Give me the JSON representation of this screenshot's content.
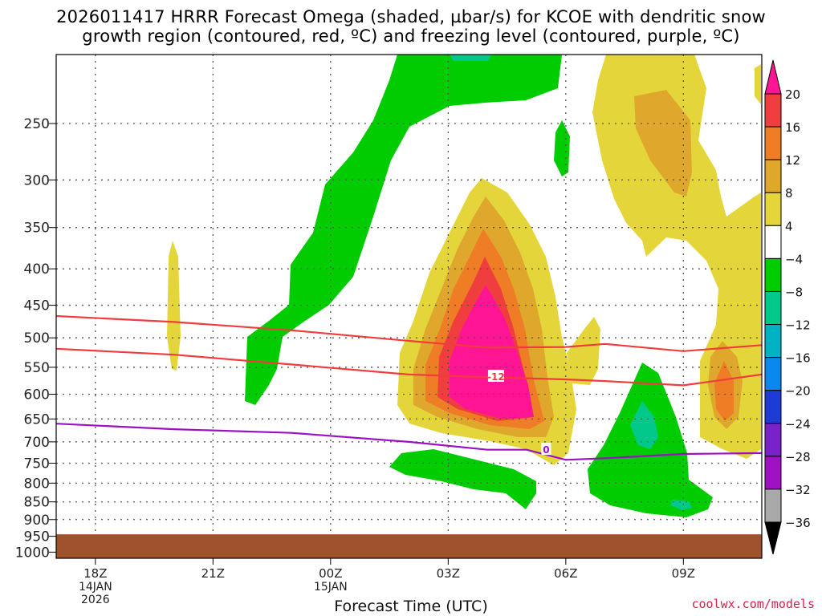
{
  "title_line1": "2026011417 HRRR Forecast Omega (shaded, µbar/s) for KCOE with dendritic snow",
  "title_line2": "growth region (contoured, red, ºC) and freezing level (contoured, purple, ºC)",
  "credit": "coolwx.com/models",
  "chart_data": {
    "type": "time-height cross section",
    "x_label": "Forecast Time (UTC)",
    "y_label": "",
    "x_ticks": [
      {
        "label": "18Z",
        "sub": [
          "14JAN",
          "2026"
        ]
      },
      {
        "label": "21Z",
        "sub": []
      },
      {
        "label": "00Z",
        "sub": [
          "15JAN"
        ]
      },
      {
        "label": "03Z",
        "sub": []
      },
      {
        "label": "06Z",
        "sub": []
      },
      {
        "label": "09Z",
        "sub": []
      }
    ],
    "x_range_hours": [
      -1,
      17
    ],
    "y_ticks": [
      250,
      300,
      350,
      400,
      450,
      500,
      550,
      600,
      650,
      700,
      750,
      800,
      850,
      900,
      950,
      1000
    ],
    "y_range_mb": [
      200,
      1020
    ],
    "y_axis": "pressure (mb), log scale, inverted",
    "ground_top_mb": 944,
    "ground_color": "#a0522d",
    "colorbar": {
      "labels": [
        "20",
        "16",
        "12",
        "8",
        "4",
        "−4",
        "−8",
        "−12",
        "−16",
        "−20",
        "−24",
        "−28",
        "−32",
        "−36"
      ],
      "colors": [
        "#ff1493",
        "#f03e3e",
        "#ee7d25",
        "#dfa82d",
        "#e4d63a",
        "#ffffff",
        "#00cc00",
        "#00c98a",
        "#00b3c4",
        "#0a88ee",
        "#1d3cd6",
        "#7a22c9",
        "#9e12c4",
        "#a9a9a9"
      ]
    },
    "omega_shading_levels": [
      -8,
      -4,
      4,
      8,
      12,
      16,
      20
    ],
    "red_contour_labels": [
      "-12"
    ],
    "purple_contour_labels": [
      "0"
    ],
    "red_contour_upper_mb": [
      [
        -1,
        466
      ],
      [
        2,
        475
      ],
      [
        5,
        488
      ],
      [
        8,
        505
      ],
      [
        10,
        516
      ],
      [
        12,
        515
      ],
      [
        13,
        510
      ],
      [
        15,
        522
      ],
      [
        17,
        512
      ]
    ],
    "red_contour_lower_mb": [
      [
        -1,
        518
      ],
      [
        2,
        528
      ],
      [
        5,
        545
      ],
      [
        8,
        563
      ],
      [
        10,
        568
      ],
      [
        12,
        572
      ],
      [
        13,
        575
      ],
      [
        15,
        583
      ],
      [
        17,
        563
      ]
    ],
    "purple_contour_mb": [
      [
        -1,
        660
      ],
      [
        2,
        672
      ],
      [
        5,
        680
      ],
      [
        8,
        700
      ],
      [
        10,
        718
      ],
      [
        11,
        718
      ],
      [
        12,
        742
      ],
      [
        13,
        738
      ],
      [
        15,
        728
      ],
      [
        17,
        726
      ]
    ]
  }
}
